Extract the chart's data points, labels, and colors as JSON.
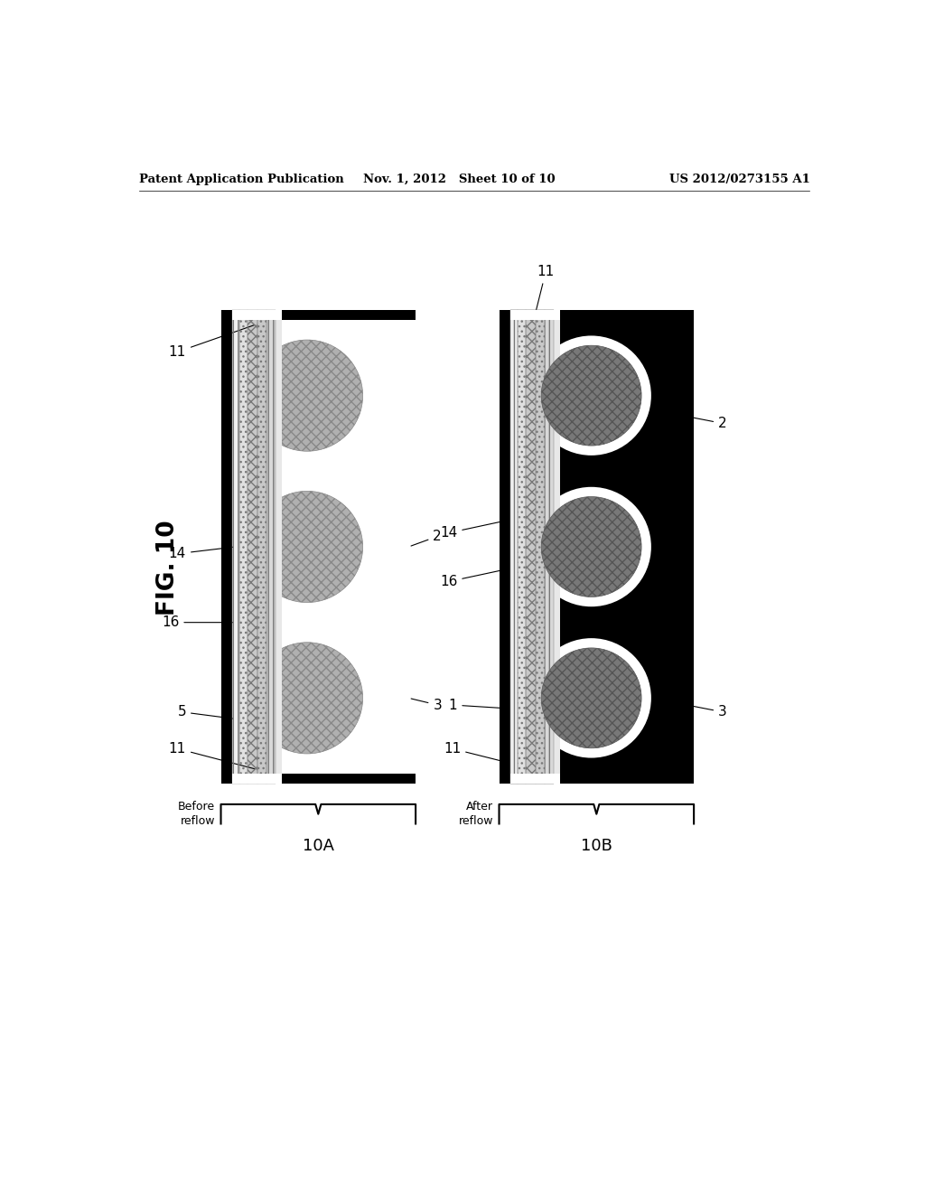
{
  "header_left": "Patent Application Publication",
  "header_mid": "Nov. 1, 2012   Sheet 10 of 10",
  "header_right": "US 2012/0273155 A1",
  "fig_label": "FIG. 10",
  "diagram_A_label": "10A",
  "diagram_B_label": "10B",
  "before_label": "Before\nreflow",
  "after_label": "After\nreflow",
  "bg_color": "#ffffff",
  "black_color": "#000000",
  "ball_gray_A": "#aaaaaa",
  "ball_gray_B": "#777777"
}
